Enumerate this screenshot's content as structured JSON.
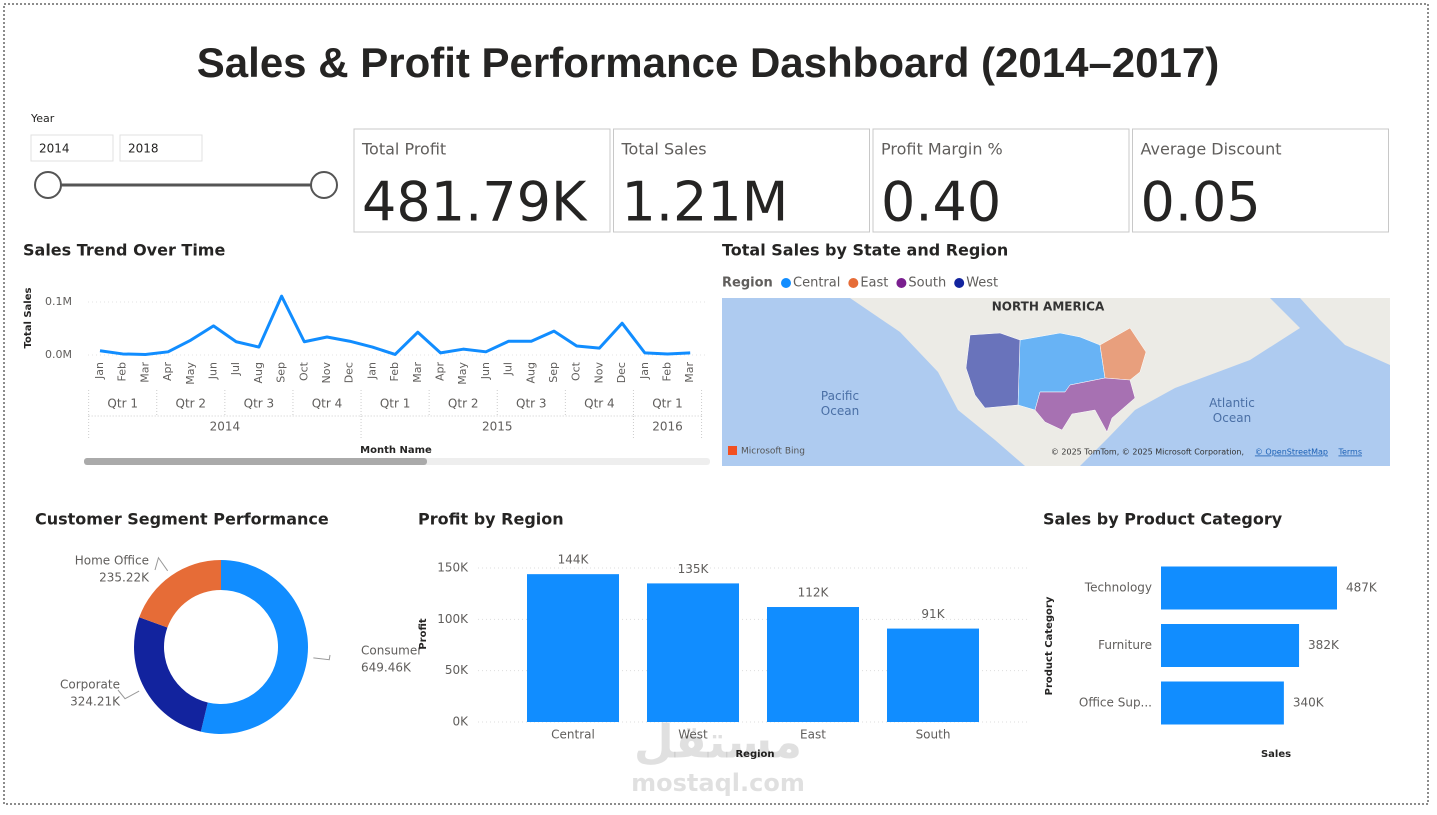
{
  "header": {
    "title": "Sales & Profit Performance Dashboard (2014–2017)"
  },
  "slicer": {
    "label": "Year",
    "start": "2014",
    "end": "2018"
  },
  "cards": [
    {
      "label": "Total Profit",
      "value": "481.79K"
    },
    {
      "label": "Total Sales",
      "value": "1.21M"
    },
    {
      "label": "Profit Margin %",
      "value": "0.40"
    },
    {
      "label": "Average Discount",
      "value": "0.05"
    }
  ],
  "chart_data": [
    {
      "type": "line",
      "title": "Sales Trend Over Time",
      "xlabel": "Month Name",
      "ylabel": "Total Sales",
      "color": "#118DFF",
      "categories": [
        "Jan",
        "Feb",
        "Mar",
        "Apr",
        "May",
        "Jun",
        "Jul",
        "Aug",
        "Sep",
        "Oct",
        "Nov",
        "Dec",
        "Jan",
        "Feb",
        "Mar",
        "Apr",
        "May",
        "Jun",
        "Jul",
        "Aug",
        "Sep",
        "Oct",
        "Nov",
        "Dec",
        "Jan",
        "Feb",
        "Mar"
      ],
      "quarter_labels": [
        "Qtr 1",
        "Qtr 2",
        "Qtr 3",
        "Qtr 4",
        "Qtr 1",
        "Qtr 2",
        "Qtr 3",
        "Qtr 4",
        "Qtr 1"
      ],
      "year_labels": [
        "2014",
        "2015",
        "2016"
      ],
      "values": [
        8000,
        2000,
        1000,
        6000,
        28000,
        55000,
        25000,
        15000,
        111000,
        25000,
        34000,
        26000,
        15000,
        1000,
        43000,
        4000,
        11000,
        6000,
        26000,
        26000,
        45000,
        17000,
        13000,
        60000,
        4000,
        2000,
        4000
      ],
      "ylim": [
        0,
        125000
      ],
      "yticks": [
        {
          "value": 0,
          "label": "0.0M"
        },
        {
          "value": 100000,
          "label": "0.1M"
        }
      ],
      "grid": true
    },
    {
      "type": "map",
      "title": "Total Sales by State and Region",
      "legend_title": "Region",
      "series": [
        {
          "name": "Central",
          "color": "#118DFF"
        },
        {
          "name": "East",
          "color": "#E66C37"
        },
        {
          "name": "South",
          "color": "#7A1F8F"
        },
        {
          "name": "West",
          "color": "#12239E"
        }
      ],
      "labels": [
        "NORTH AMERICA",
        "Pacific Ocean",
        "Atlantic Ocean"
      ],
      "provider": "Microsoft Bing",
      "attribution": "© 2025 TomTom, © 2025 Microsoft Corporation,",
      "osm": "© OpenStreetMap",
      "terms": "Terms"
    },
    {
      "type": "donut",
      "title": "Customer Segment Performance",
      "categories": [
        "Consumer",
        "Corporate",
        "Home Office"
      ],
      "values": [
        649.46,
        324.21,
        235.22
      ],
      "value_labels": [
        "649.46K",
        "324.21K",
        "235.22K"
      ],
      "colors": [
        "#118DFF",
        "#12239E",
        "#E66C37"
      ]
    },
    {
      "type": "bar",
      "title": "Profit by Region",
      "xlabel": "Region",
      "ylabel": "Profit",
      "color": "#118DFF",
      "categories": [
        "Central",
        "West",
        "East",
        "South"
      ],
      "values": [
        144000,
        135000,
        112000,
        91000
      ],
      "value_labels": [
        "144K",
        "135K",
        "112K",
        "91K"
      ],
      "ylim": [
        0,
        150000
      ],
      "yticks": [
        {
          "value": 0,
          "label": "0K"
        },
        {
          "value": 50000,
          "label": "50K"
        },
        {
          "value": 100000,
          "label": "100K"
        },
        {
          "value": 150000,
          "label": "150K"
        }
      ],
      "grid": true
    },
    {
      "type": "hbar",
      "title": "Sales by Product Category",
      "xlabel": "Sales",
      "ylabel": "Product Category",
      "color": "#118DFF",
      "categories": [
        "Technology",
        "Furniture",
        "Office Sup..."
      ],
      "values": [
        487,
        382,
        340
      ],
      "value_labels": [
        "487K",
        "382K",
        "340K"
      ]
    }
  ],
  "watermark": {
    "arabic": "مستقل",
    "latin": "mostaql.com"
  }
}
